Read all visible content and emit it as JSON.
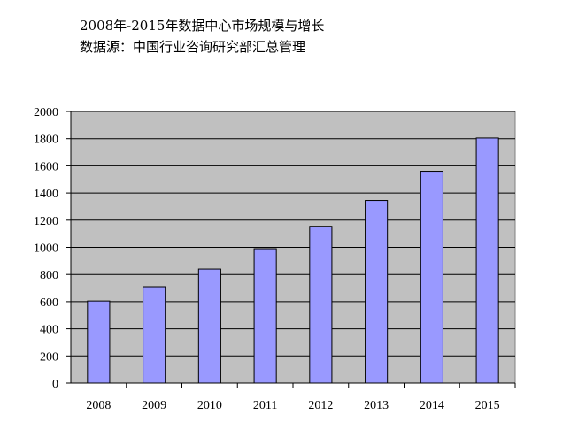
{
  "title": "2008年-2015年数据中心市场规模与增长",
  "subtitle": "数据源：中国行业咨询研究部汇总管理",
  "chart_data": {
    "type": "bar",
    "categories": [
      "2008",
      "2009",
      "2010",
      "2011",
      "2012",
      "2013",
      "2014",
      "2015"
    ],
    "values": [
      605,
      710,
      840,
      990,
      1155,
      1345,
      1560,
      1805
    ],
    "ylim": [
      0,
      2000
    ],
    "yticks": [
      0,
      200,
      400,
      600,
      800,
      1000,
      1200,
      1400,
      1600,
      1800,
      2000
    ],
    "ytick_labels": [
      "0",
      "200",
      "400",
      "600",
      "800",
      "1000",
      "1200",
      "1400",
      "1600",
      "1800",
      "2000"
    ],
    "grid": true,
    "legend": "none",
    "plot_background": "#c0c0c0",
    "bar_color": "#9999ff"
  }
}
